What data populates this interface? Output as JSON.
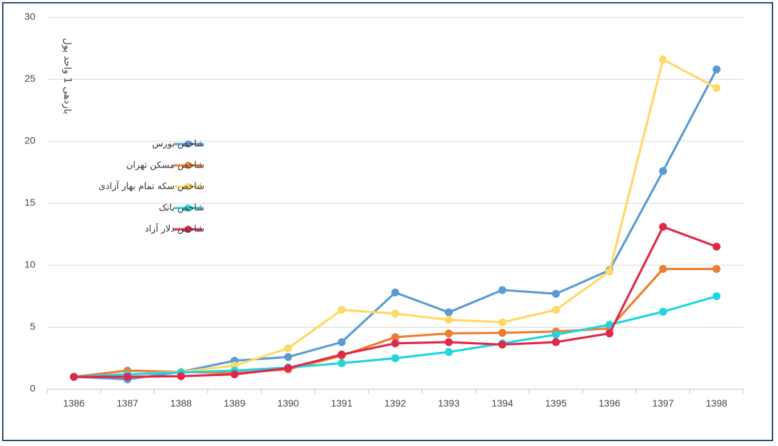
{
  "chart_data": {
    "type": "line",
    "title": "",
    "xlabel": "",
    "ylabel": "بازدهی 1 واحد پول",
    "ylim": [
      0,
      30
    ],
    "yticks": [
      0,
      5,
      10,
      15,
      20,
      25,
      30
    ],
    "grid": true,
    "legend_position": "upper-left-inside",
    "categories": [
      "1386",
      "1387",
      "1388",
      "1389",
      "1390",
      "1391",
      "1392",
      "1393",
      "1394",
      "1395",
      "1396",
      "1397",
      "1398"
    ],
    "series": [
      {
        "name": "شاخص بورس",
        "color": "#5b9bd5",
        "values": [
          1.0,
          0.8,
          1.4,
          2.3,
          2.6,
          3.8,
          7.8,
          6.2,
          8.0,
          7.7,
          9.6,
          17.6,
          25.8
        ]
      },
      {
        "name": "شاخص مسکن تهران",
        "color": "#ed7d31",
        "values": [
          1.0,
          1.5,
          1.4,
          1.3,
          1.6,
          2.7,
          4.2,
          4.5,
          4.55,
          4.65,
          4.9,
          9.7,
          9.7
        ]
      },
      {
        "name": "شاخص سکه تمام بهار آزادی",
        "color": "#ffd966",
        "values": [
          1.0,
          1.2,
          1.4,
          1.9,
          3.3,
          6.4,
          6.1,
          5.6,
          5.4,
          6.4,
          9.5,
          26.6,
          24.3
        ]
      },
      {
        "name": "شاخص بانک",
        "color": "#21d4e0",
        "values": [
          1.0,
          1.2,
          1.35,
          1.5,
          1.75,
          2.1,
          2.5,
          3.0,
          3.7,
          4.4,
          5.2,
          6.25,
          7.5
        ]
      },
      {
        "name": "شاخص دلار آزاد",
        "color": "#e0284b",
        "values": [
          1.0,
          1.0,
          1.05,
          1.2,
          1.7,
          2.8,
          3.7,
          3.8,
          3.6,
          3.8,
          4.5,
          13.1,
          11.5
        ]
      }
    ]
  }
}
